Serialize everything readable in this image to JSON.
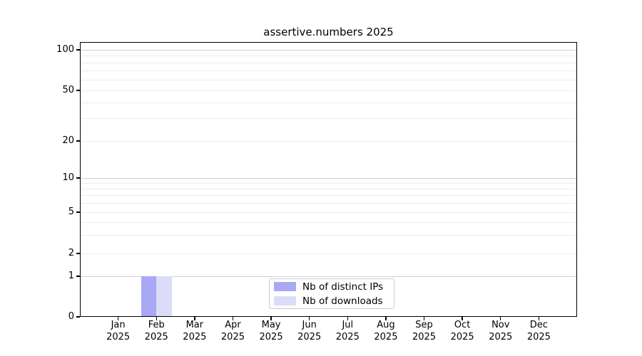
{
  "chart_data": {
    "type": "bar",
    "title": "assertive.numbers 2025",
    "categories": [
      {
        "month": "Jan",
        "year": "2025"
      },
      {
        "month": "Feb",
        "year": "2025"
      },
      {
        "month": "Mar",
        "year": "2025"
      },
      {
        "month": "Apr",
        "year": "2025"
      },
      {
        "month": "May",
        "year": "2025"
      },
      {
        "month": "Jun",
        "year": "2025"
      },
      {
        "month": "Jul",
        "year": "2025"
      },
      {
        "month": "Aug",
        "year": "2025"
      },
      {
        "month": "Sep",
        "year": "2025"
      },
      {
        "month": "Oct",
        "year": "2025"
      },
      {
        "month": "Nov",
        "year": "2025"
      },
      {
        "month": "Dec",
        "year": "2025"
      }
    ],
    "series": [
      {
        "name": "Nb of distinct IPs",
        "color": "#a8a8f5",
        "values": [
          0,
          1,
          0,
          0,
          0,
          0,
          0,
          0,
          0,
          0,
          0,
          0
        ]
      },
      {
        "name": "Nb of downloads",
        "color": "#dcdcf8",
        "values": [
          0,
          1,
          0,
          0,
          0,
          0,
          0,
          0,
          0,
          0,
          0,
          0
        ]
      }
    ],
    "y_axis": {
      "ticks": [
        0,
        1,
        2,
        5,
        10,
        20,
        50,
        100
      ],
      "range": [
        0,
        100
      ],
      "scale": "log-above-1"
    },
    "legend_position": "lower center",
    "grid": true,
    "colors": {
      "grid_major": "#d0d0d0",
      "grid_minor": "#ebebeb",
      "spine": "#000000",
      "text": "#000000"
    }
  }
}
